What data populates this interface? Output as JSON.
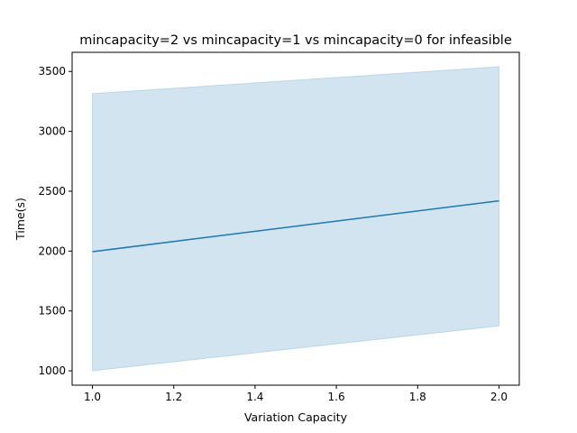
{
  "chart_data": {
    "type": "line",
    "title": "mincapacity=2 vs mincapacity=1 vs mincapacity=0 for infeasible",
    "xlabel": "Variation Capacity",
    "ylabel": "Time(s)",
    "xlim": [
      0.95,
      2.05
    ],
    "ylim": [
      880,
      3660
    ],
    "x_ticks": [
      1.0,
      1.2,
      1.4,
      1.6,
      1.8,
      2.0
    ],
    "x_tick_labels": [
      "1.0",
      "1.2",
      "1.4",
      "1.6",
      "1.8",
      "2.0"
    ],
    "y_ticks": [
      1000,
      1500,
      2000,
      2500,
      3000,
      3500
    ],
    "y_tick_labels": [
      "1000",
      "1500",
      "2000",
      "2500",
      "3000",
      "3500"
    ],
    "series": [
      {
        "x": [
          1.0,
          2.0
        ],
        "y": [
          1995,
          2420
        ],
        "band_lower": [
          1000,
          1375
        ],
        "band_upper": [
          3315,
          3540
        ],
        "color": "#1f77b4"
      }
    ]
  }
}
